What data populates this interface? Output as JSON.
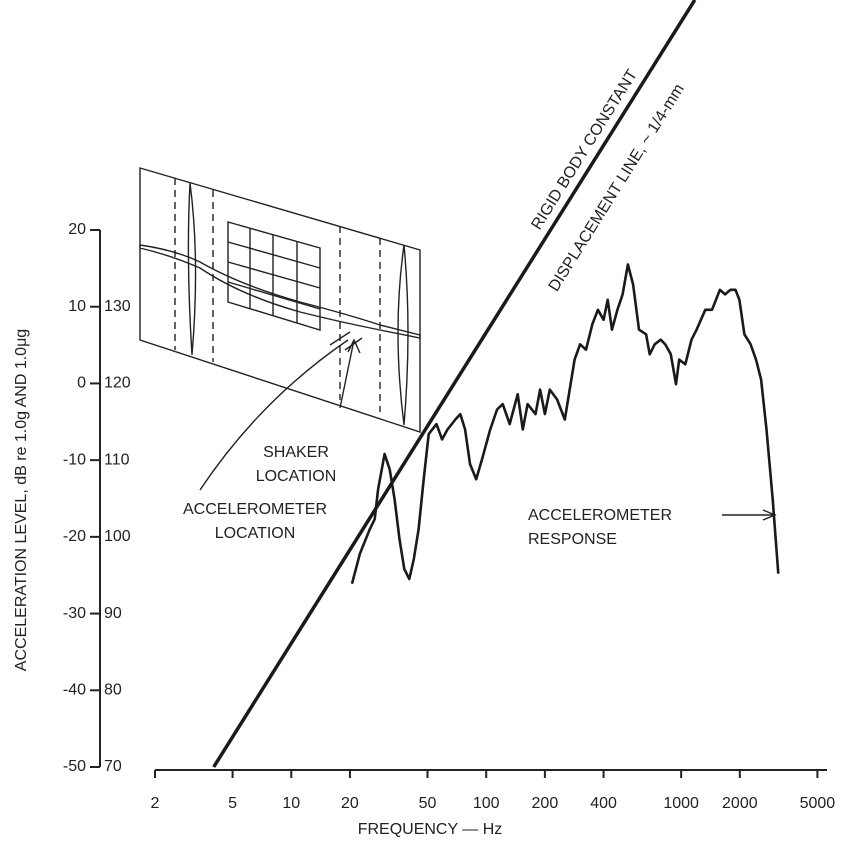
{
  "chart_data": {
    "type": "line",
    "xlabel": "FREQUENCY — Hz",
    "ylabel": "ACCELERATION LEVEL, dB re 1.0g AND 1.0μg",
    "xscale": "log",
    "xlim": [
      2,
      5600
    ],
    "xticks": [
      2,
      5,
      10,
      20,
      50,
      100,
      200,
      400,
      1000,
      2000,
      5000
    ],
    "ylim": [
      -50,
      20
    ],
    "yticks": [
      -50,
      -40,
      -30,
      -20,
      -10,
      0,
      10,
      20
    ],
    "y2lim": [
      70,
      140
    ],
    "y2ticks": [
      70,
      80,
      90,
      100,
      110,
      120,
      130
    ],
    "annotations": [
      {
        "lines": [
          "RIGID BODY CONSTANT"
        ]
      },
      {
        "lines": [
          "DISPLACEMENT LINE, ~ 1/4-mm"
        ]
      },
      {
        "lines": [
          "SHAKER",
          "LOCATION"
        ]
      },
      {
        "lines": [
          "ACCELEROMETER",
          "LOCATION"
        ]
      },
      {
        "lines": [
          "ACCELEROMETER",
          "RESPONSE"
        ]
      }
    ],
    "series": [
      {
        "color": "#1a1a1a",
        "x": [
          20.5,
          22.5,
          25.3,
          26.8,
          27.9,
          30.1,
          32,
          33.9,
          35.9,
          38,
          40.3,
          42.5,
          45,
          47.8,
          50.7,
          55.6,
          59.4,
          63.3,
          69.5,
          73.6,
          77.9,
          82.6,
          88.9,
          95.2,
          104.8,
          113.8,
          121.5,
          132,
          145,
          154,
          163,
          179,
          189,
          200,
          212,
          231,
          253,
          268,
          284,
          303,
          325,
          350,
          374,
          400,
          420,
          442,
          471,
          501,
          533,
          567,
          608,
          661,
          690,
          732,
          785,
          828,
          885,
          941,
          977,
          1050,
          1130,
          1200,
          1330,
          1440,
          1580,
          1680,
          1790,
          1900,
          1990,
          2110,
          2270,
          2420,
          2570,
          2740,
          2950,
          3150
        ],
        "values": [
          -26.1,
          -22.2,
          -19,
          -17.7,
          -13.8,
          -9.2,
          -11.2,
          -15.1,
          -20.3,
          -24.2,
          -25.5,
          -22.9,
          -19,
          -12.5,
          -6.6,
          -5.3,
          -7.3,
          -6,
          -4.7,
          -4,
          -6,
          -10.5,
          -12.5,
          -9.9,
          -6,
          -3.4,
          -2.7,
          -5.3,
          -1.4,
          -6,
          -2.7,
          -4,
          -0.8,
          -4,
          -0.8,
          -2.1,
          -4.7,
          -0.8,
          3.1,
          5.1,
          4.4,
          7.7,
          9.6,
          8.3,
          10.9,
          7,
          9.6,
          11.6,
          15.5,
          12.9,
          7,
          6.4,
          3.8,
          5.1,
          5.7,
          5.1,
          3.8,
          -0.1,
          3.1,
          2.5,
          5.7,
          7,
          9.6,
          9.6,
          12.2,
          11.6,
          12.2,
          12.2,
          10.9,
          6.4,
          5.1,
          3.1,
          0.5,
          -6,
          -15.1,
          -24.8
        ]
      },
      {
        "color": "#1a1a1a",
        "x": [
          4,
          1175
        ],
        "values": [
          -50,
          50
        ]
      }
    ]
  }
}
